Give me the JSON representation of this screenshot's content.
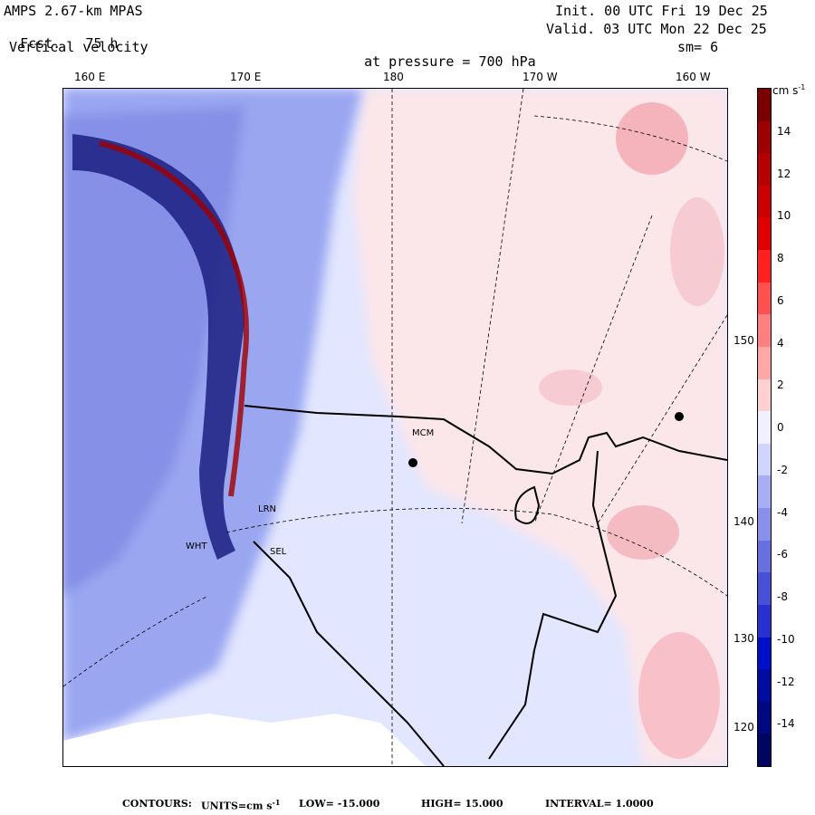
{
  "header": {
    "model": "AMPS 2.67-km MPAS",
    "fcst_label": "Fcst.",
    "fcst_value": "75 h",
    "field": "Vertical velocity",
    "pressure_label": "at pressure =",
    "pressure_value": "700 hPa",
    "init": "Init. 00 UTC Fri 19 Dec 25",
    "valid": "Valid. 03 UTC Mon 22 Dec 25",
    "smoothing": "sm= 6"
  },
  "longitude_labels": [
    "160 E",
    "170 E",
    "180",
    "170 W",
    "160 W"
  ],
  "side_labels": [
    "150 W",
    "140 W",
    "130 W",
    "120 W"
  ],
  "stations": [
    "MCM",
    "LRN",
    "WHT",
    "SEL"
  ],
  "colorbar": {
    "units": "cm s",
    "units_exp": "-1",
    "tick_labels": [
      "14",
      "12",
      "10",
      "8",
      "6",
      "4",
      "2",
      "0",
      "-2",
      "-4",
      "-6",
      "-8",
      "-10",
      "-12",
      "-14"
    ],
    "colors": [
      "#7a0000",
      "#9c0000",
      "#b40000",
      "#cc0000",
      "#e00000",
      "#ff2020",
      "#ff5050",
      "#ff8080",
      "#ffa8a8",
      "#ffd0d0",
      "#f0f0ff",
      "#d0d4ff",
      "#a8aef4",
      "#8890ea",
      "#6870e0",
      "#4850d8",
      "#2830d0",
      "#0010c8",
      "#000ca0",
      "#000880",
      "#000660"
    ],
    "color_note": "red positive, blue negative"
  },
  "footer": {
    "contours_label": "CONTOURS:",
    "units_label": "UNITS=cm s",
    "units_exp": "-1",
    "low": "LOW= -15.000",
    "high": "HIGH= 15.000",
    "interval": "INTERVAL= 1.0000"
  }
}
